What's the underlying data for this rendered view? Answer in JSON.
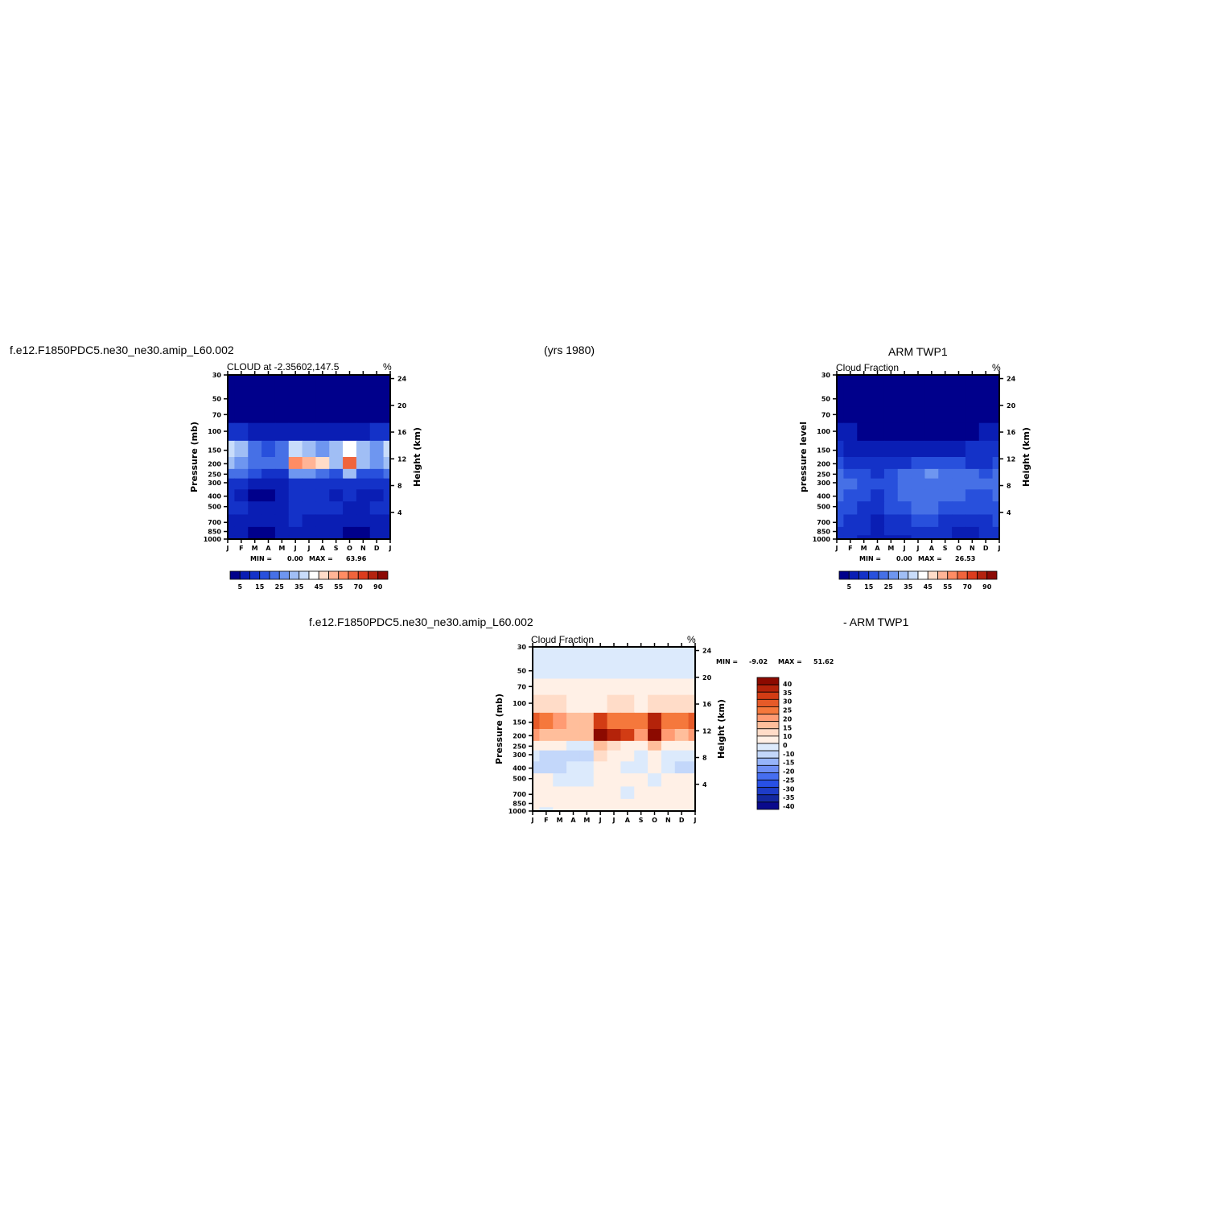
{
  "header": {
    "case_name": "f.e12.F1850PDC5.ne30_ne30.amip_L60.002",
    "years": "(yrs 1980)",
    "obs_name": "ARM TWP1"
  },
  "colormap": {
    "abs_colors": [
      "#00008b",
      "#0a1eb4",
      "#1432c8",
      "#2850dc",
      "#4670e6",
      "#6e96f0",
      "#a0bef5",
      "#c8dcfa",
      "#ffffff",
      "#ffdcc8",
      "#ffb496",
      "#ff8c64",
      "#f0643c",
      "#dc3c1e",
      "#b4230f",
      "#8c0a05"
    ],
    "abs_labels": [
      "5",
      "15",
      "25",
      "35",
      "45",
      "55",
      "70",
      "90"
    ],
    "diff_colors": [
      "#0a0a8c",
      "#1428a0",
      "#1e3cc8",
      "#2850e6",
      "#466ef0",
      "#6e8ff5",
      "#96b4fa",
      "#c3d7fa",
      "#dceafc",
      "#fff0e6",
      "#ffdcc8",
      "#ffbe9b",
      "#ff9b73",
      "#f5783c",
      "#e65a28",
      "#d23c14",
      "#b4230a",
      "#8c0a00"
    ],
    "diff_labels": [
      "40",
      "35",
      "30",
      "25",
      "20",
      "15",
      "10",
      "0",
      "-10",
      "-15",
      "-20",
      "-25",
      "-30",
      "-35",
      "-40"
    ]
  },
  "chart_data": [
    {
      "type": "heatmap",
      "panel_label": "f.e12.F1850PDC5.ne30_ne30.amip_L60.002",
      "title": "CLOUD at -2.35602,147.5",
      "units": "%",
      "xlabel": "",
      "ylabel": "Pressure (mb)",
      "ylabel_right": "Height (km)",
      "x_ticks": [
        "J",
        "F",
        "M",
        "A",
        "M",
        "J",
        "J",
        "A",
        "S",
        "O",
        "N",
        "D",
        "J"
      ],
      "y_ticks": [
        "30",
        "50",
        "70",
        "100",
        "150",
        "200",
        "250",
        "300",
        "400",
        "500",
        "700",
        "850",
        "1000"
      ],
      "y_ticks_right": [
        "24",
        "20",
        "16",
        "12",
        "8",
        "4"
      ],
      "stats": {
        "min_label": "MIN =",
        "min": "0.00",
        "max_label": "MAX =",
        "max": "63.96"
      },
      "levels_mb": [
        30,
        50,
        70,
        100,
        150,
        200,
        250,
        300,
        400,
        500,
        700,
        850,
        1000
      ],
      "values": [
        [
          1,
          1,
          1,
          1,
          1,
          1,
          1,
          1,
          1,
          1,
          1,
          1,
          1
        ],
        [
          1,
          1,
          1,
          1,
          1,
          1,
          1,
          1,
          1,
          1,
          1,
          1,
          1
        ],
        [
          2,
          2,
          1,
          1,
          1,
          1,
          1,
          1,
          1,
          1,
          1,
          2,
          2
        ],
        [
          12,
          10,
          8,
          6,
          5,
          5,
          6,
          6,
          5,
          6,
          8,
          10,
          12
        ],
        [
          35,
          30,
          22,
          18,
          20,
          38,
          30,
          28,
          30,
          42,
          32,
          28,
          35
        ],
        [
          30,
          28,
          24,
          20,
          22,
          55,
          50,
          45,
          32,
          63,
          30,
          26,
          30
        ],
        [
          22,
          20,
          16,
          12,
          14,
          28,
          26,
          22,
          18,
          30,
          18,
          16,
          22
        ],
        [
          14,
          12,
          8,
          6,
          8,
          14,
          14,
          12,
          10,
          14,
          10,
          10,
          14
        ],
        [
          10,
          8,
          4,
          3,
          5,
          10,
          12,
          10,
          8,
          10,
          6,
          8,
          10
        ],
        [
          12,
          10,
          6,
          5,
          7,
          12,
          14,
          12,
          10,
          8,
          6,
          10,
          12
        ],
        [
          8,
          8,
          6,
          6,
          8,
          10,
          8,
          6,
          8,
          6,
          5,
          8,
          8
        ],
        [
          6,
          6,
          4,
          4,
          6,
          8,
          6,
          6,
          6,
          4,
          4,
          6,
          6
        ],
        [
          5,
          5,
          4,
          4,
          5,
          6,
          5,
          5,
          5,
          4,
          4,
          5,
          5
        ]
      ],
      "ylim": [
        1000,
        30
      ]
    },
    {
      "type": "heatmap",
      "panel_label": "ARM TWP1",
      "title": "Cloud Fraction",
      "units": "%",
      "xlabel": "",
      "ylabel": "pressure level",
      "ylabel_right": "Height (km)",
      "x_ticks": [
        "J",
        "F",
        "M",
        "A",
        "M",
        "J",
        "J",
        "A",
        "S",
        "O",
        "N",
        "D",
        "J"
      ],
      "y_ticks": [
        "30",
        "50",
        "70",
        "100",
        "150",
        "200",
        "250",
        "300",
        "400",
        "500",
        "700",
        "850",
        "1000"
      ],
      "y_ticks_right": [
        "24",
        "20",
        "16",
        "12",
        "8",
        "4"
      ],
      "stats": {
        "min_label": "MIN =",
        "min": "0.00",
        "max_label": "MAX =",
        "max": "26.53"
      },
      "levels_mb": [
        30,
        50,
        70,
        100,
        150,
        200,
        250,
        300,
        400,
        500,
        700,
        850,
        1000
      ],
      "values": [
        [
          1,
          1,
          1,
          1,
          1,
          1,
          1,
          1,
          1,
          1,
          1,
          1,
          1
        ],
        [
          1,
          1,
          1,
          1,
          1,
          1,
          1,
          1,
          1,
          1,
          1,
          1,
          1
        ],
        [
          1,
          1,
          1,
          1,
          1,
          1,
          1,
          1,
          1,
          1,
          1,
          1,
          1
        ],
        [
          6,
          5,
          4,
          3,
          3,
          3,
          3,
          3,
          3,
          3,
          4,
          5,
          6
        ],
        [
          10,
          9,
          8,
          8,
          8,
          7,
          8,
          9,
          9,
          9,
          10,
          11,
          10
        ],
        [
          16,
          14,
          12,
          12,
          12,
          14,
          16,
          18,
          16,
          16,
          14,
          14,
          16
        ],
        [
          20,
          18,
          16,
          14,
          16,
          20,
          22,
          26,
          22,
          24,
          20,
          18,
          20
        ],
        [
          22,
          20,
          18,
          16,
          18,
          22,
          24,
          24,
          22,
          24,
          20,
          20,
          22
        ],
        [
          20,
          18,
          16,
          12,
          18,
          20,
          22,
          22,
          20,
          22,
          18,
          18,
          20
        ],
        [
          18,
          16,
          14,
          10,
          16,
          18,
          20,
          20,
          18,
          18,
          16,
          16,
          18
        ],
        [
          16,
          14,
          12,
          8,
          12,
          14,
          16,
          16,
          14,
          10,
          10,
          14,
          16
        ],
        [
          14,
          12,
          10,
          8,
          10,
          10,
          12,
          12,
          12,
          8,
          8,
          12,
          14
        ],
        [
          12,
          10,
          8,
          6,
          8,
          8,
          10,
          10,
          10,
          6,
          6,
          10,
          12
        ]
      ],
      "ylim": [
        1000,
        30
      ]
    },
    {
      "type": "heatmap",
      "panel_label": "f.e12.F1850PDC5.ne30_ne30.amip_L60.002",
      "panel_label_right": "- ARM TWP1",
      "title": "Cloud Fraction",
      "units": "%",
      "xlabel": "",
      "ylabel": "Pressure (mb)",
      "ylabel_right": "Height (km)",
      "x_ticks": [
        "J",
        "F",
        "M",
        "A",
        "M",
        "J",
        "J",
        "A",
        "S",
        "O",
        "N",
        "D",
        "J"
      ],
      "y_ticks": [
        "30",
        "50",
        "70",
        "100",
        "150",
        "200",
        "250",
        "300",
        "400",
        "500",
        "700",
        "850",
        "1000"
      ],
      "y_ticks_right": [
        "24",
        "20",
        "16",
        "12",
        "8",
        "4"
      ],
      "stats": {
        "min_label": "MIN =",
        "min": "-9.02",
        "max_label": "MAX =",
        "max": "51.62"
      },
      "levels_mb": [
        30,
        50,
        70,
        100,
        150,
        200,
        250,
        300,
        400,
        500,
        700,
        850,
        1000
      ],
      "values": [
        [
          -2,
          -2,
          -2,
          -2,
          -2,
          -2,
          -2,
          -2,
          -2,
          -2,
          -2,
          -2,
          -2
        ],
        [
          -2,
          -2,
          -2,
          -2,
          -2,
          -2,
          -2,
          -2,
          -2,
          -2,
          -2,
          -2,
          -2
        ],
        [
          2,
          2,
          1,
          1,
          1,
          1,
          1,
          1,
          1,
          1,
          1,
          2,
          2
        ],
        [
          8,
          6,
          5,
          4,
          3,
          4,
          5,
          5,
          4,
          5,
          6,
          7,
          8
        ],
        [
          25,
          22,
          16,
          12,
          14,
          30,
          24,
          20,
          22,
          36,
          24,
          20,
          25
        ],
        [
          16,
          14,
          12,
          10,
          12,
          45,
          36,
          30,
          18,
          51,
          18,
          14,
          16
        ],
        [
          4,
          4,
          2,
          -2,
          -2,
          10,
          8,
          4,
          2,
          12,
          2,
          2,
          4
        ],
        [
          -4,
          -6,
          -8,
          -6,
          -6,
          6,
          4,
          2,
          -2,
          4,
          -4,
          -4,
          -4
        ],
        [
          -6,
          -8,
          -9,
          -5,
          -4,
          4,
          2,
          -2,
          -4,
          2,
          -4,
          -6,
          -6
        ],
        [
          2,
          2,
          -4,
          -3,
          -2,
          2,
          2,
          2,
          2,
          -2,
          2,
          2,
          2
        ],
        [
          2,
          2,
          2,
          2,
          2,
          2,
          2,
          -2,
          2,
          2,
          2,
          2,
          2
        ],
        [
          2,
          2,
          2,
          2,
          2,
          2,
          2,
          2,
          2,
          2,
          2,
          2,
          2
        ],
        [
          2,
          -2,
          2,
          2,
          2,
          2,
          2,
          2,
          2,
          2,
          2,
          2,
          2
        ]
      ],
      "ylim": [
        1000,
        30
      ]
    }
  ]
}
